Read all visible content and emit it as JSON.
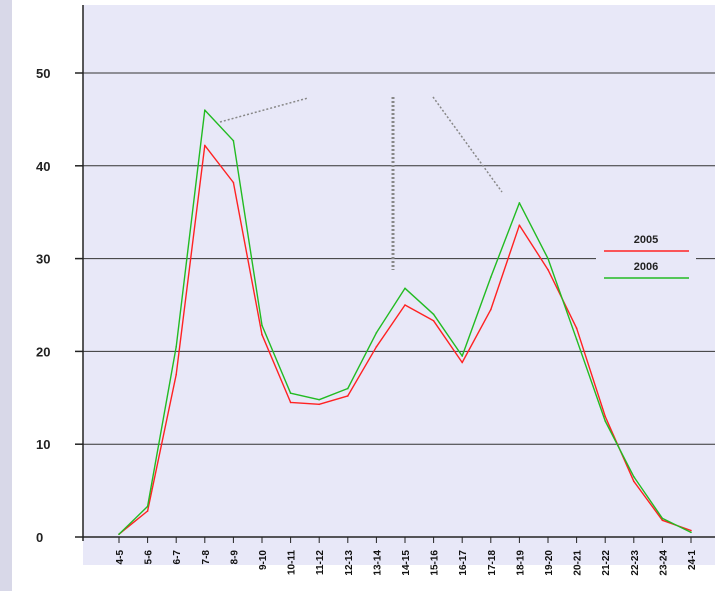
{
  "chart_data": {
    "type": "line",
    "title": "",
    "xlabel": "",
    "ylabel": "",
    "categories": [
      "4-5",
      "5-6",
      "6-7",
      "7-8",
      "8-9",
      "9-10",
      "10-11",
      "11-12",
      "12-13",
      "13-14",
      "14-15",
      "15-16",
      "16-17",
      "17-18",
      "18-19",
      "19-20",
      "20-21",
      "21-22",
      "22-23",
      "23-24",
      "24-1"
    ],
    "series": [
      {
        "name": "2005",
        "color": "#ff2222",
        "values": [
          0.3,
          2.8,
          17.5,
          42.2,
          38.2,
          21.8,
          14.5,
          14.3,
          15.2,
          20.5,
          25.0,
          23.3,
          18.8,
          24.5,
          33.6,
          28.8,
          22.5,
          13.0,
          6.0,
          1.8,
          0.7
        ]
      },
      {
        "name": "2006",
        "color": "#22bb22",
        "values": [
          0.3,
          3.3,
          20.5,
          46.0,
          42.7,
          22.8,
          15.5,
          14.8,
          16.0,
          22.0,
          26.8,
          24.0,
          19.5,
          28.0,
          36.0,
          30.0,
          21.3,
          12.5,
          6.5,
          2.0,
          0.5
        ]
      }
    ],
    "yticks": [
      0,
      10,
      20,
      30,
      40,
      50
    ],
    "ylim": [
      0,
      57
    ],
    "grid": true,
    "legend_position": "right",
    "colors": {
      "plot_background": "#e8e8f8",
      "page_background": "#ffffff",
      "left_band": "#d8d8e8",
      "grid": "#333333",
      "annotation": "#888888"
    }
  }
}
